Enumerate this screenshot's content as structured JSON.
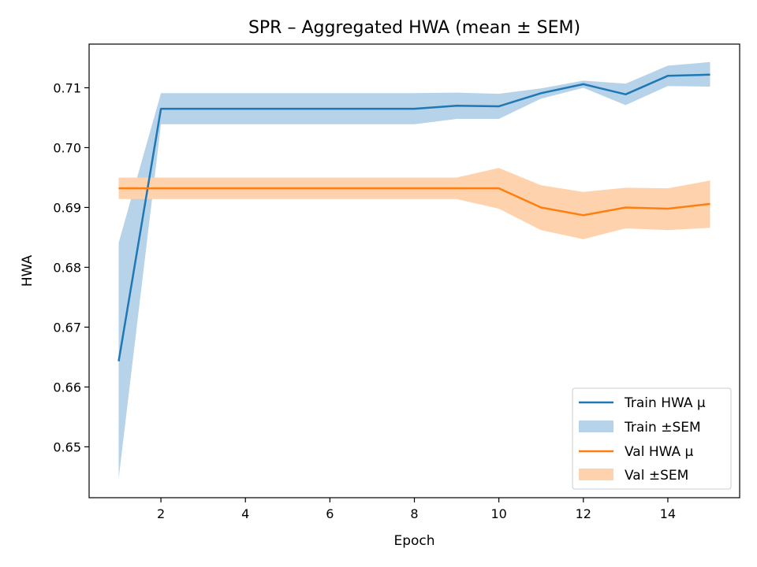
{
  "chart_data": {
    "type": "line",
    "title": "SPR – Aggregated HWA (mean ± SEM)",
    "xlabel": "Epoch",
    "ylabel": "HWA",
    "xlim": [
      0.3,
      15.7
    ],
    "ylim": [
      0.6415,
      0.7173
    ],
    "xticks": [
      2,
      4,
      6,
      8,
      10,
      12,
      14
    ],
    "yticks": [
      0.65,
      0.66,
      0.67,
      0.68,
      0.69,
      0.7,
      0.71
    ],
    "ytick_labels": [
      "0.65",
      "0.66",
      "0.67",
      "0.68",
      "0.69",
      "0.70",
      "0.71"
    ],
    "grid": false,
    "legend_position": "lower-right",
    "x": [
      1,
      2,
      3,
      4,
      5,
      6,
      7,
      8,
      9,
      10,
      11,
      12,
      13,
      14,
      15
    ],
    "series": [
      {
        "name": "Train HWA µ",
        "band_name": "Train ±SEM",
        "color": "#1f77b4",
        "band_color": "#b6d3e9",
        "values": [
          0.6643,
          0.7065,
          0.7065,
          0.7065,
          0.7065,
          0.7065,
          0.7065,
          0.7065,
          0.707,
          0.7069,
          0.7091,
          0.7106,
          0.7089,
          0.712,
          0.7122
        ],
        "lower": [
          0.6447,
          0.7039,
          0.7039,
          0.7039,
          0.7039,
          0.7039,
          0.7039,
          0.7039,
          0.7048,
          0.7048,
          0.7082,
          0.71,
          0.7071,
          0.7103,
          0.7102
        ],
        "upper": [
          0.6841,
          0.7091,
          0.7091,
          0.7091,
          0.7091,
          0.7091,
          0.7091,
          0.7091,
          0.7092,
          0.709,
          0.7099,
          0.7112,
          0.7107,
          0.7137,
          0.7143
        ]
      },
      {
        "name": "Val HWA µ",
        "band_name": "Val ±SEM",
        "color": "#ff7f0e",
        "band_color": "#ffd2ae",
        "values": [
          0.6932,
          0.6932,
          0.6932,
          0.6932,
          0.6932,
          0.6932,
          0.6932,
          0.6932,
          0.6932,
          0.6932,
          0.69,
          0.6887,
          0.69,
          0.6898,
          0.6906
        ],
        "lower": [
          0.6914,
          0.6914,
          0.6914,
          0.6914,
          0.6914,
          0.6914,
          0.6914,
          0.6914,
          0.6914,
          0.6898,
          0.6862,
          0.6847,
          0.6865,
          0.6862,
          0.6866
        ],
        "upper": [
          0.695,
          0.695,
          0.695,
          0.695,
          0.695,
          0.695,
          0.695,
          0.695,
          0.695,
          0.6966,
          0.6937,
          0.6926,
          0.6933,
          0.6932,
          0.6945
        ]
      }
    ]
  }
}
